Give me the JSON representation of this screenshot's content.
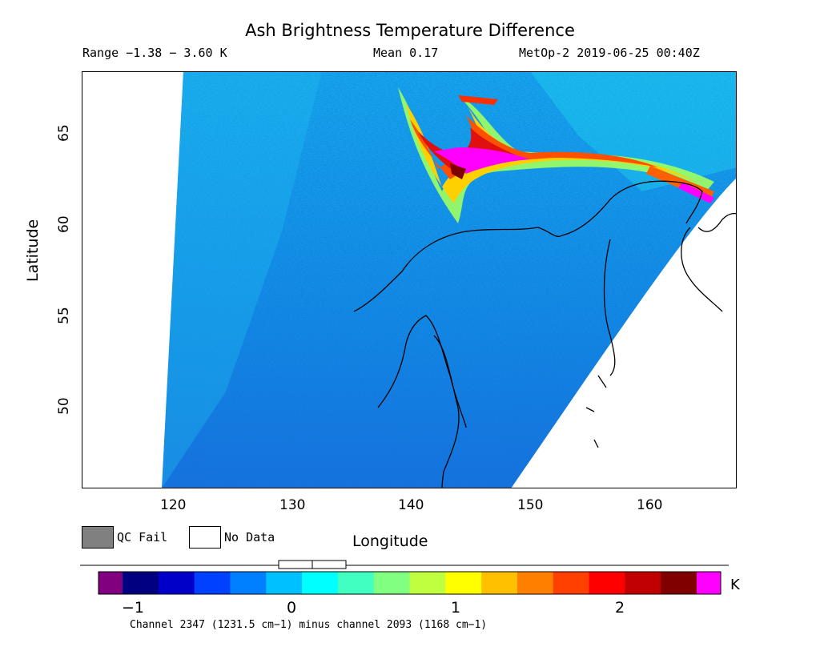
{
  "header": {
    "title": "Ash Brightness Temperature Difference",
    "range": "Range −1.38 − 3.60 K",
    "mean": "Mean 0.17",
    "satellite_time": "MetOp-2 2019-06-25 00:40Z"
  },
  "map": {
    "x_axis_label": "Longitude",
    "y_axis_label": "Latitude",
    "x_ticks": [
      "120",
      "130",
      "140",
      "150",
      "160"
    ],
    "y_ticks": [
      "65",
      "60",
      "55",
      "50"
    ],
    "lon_range": [
      112,
      167
    ],
    "lat_range": [
      45,
      68
    ]
  },
  "legend": {
    "qc_fail_label": "QC Fail",
    "qc_fail_color": "#808080",
    "no_data_label": "No Data",
    "no_data_color": "#ffffff"
  },
  "colorbar": {
    "ticks": [
      "−1",
      "0",
      "1",
      "2"
    ],
    "unit": "K",
    "colors": [
      "#800080",
      "#000080",
      "#0000c8",
      "#0040ff",
      "#0080ff",
      "#00c0ff",
      "#00ffff",
      "#40ffc0",
      "#80ff80",
      "#c0ff40",
      "#ffff00",
      "#ffc000",
      "#ff8000",
      "#ff4000",
      "#ff0000",
      "#c00000",
      "#800000",
      "#ff00ff"
    ]
  },
  "footer": {
    "channel_text": "Channel 2347 (1231.5 cm−1) minus channel 2093 (1168 cm−1)"
  }
}
